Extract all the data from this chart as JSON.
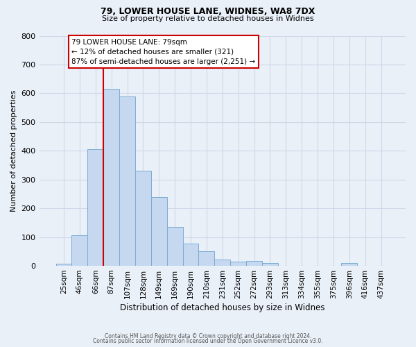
{
  "title1": "79, LOWER HOUSE LANE, WIDNES, WA8 7DX",
  "title2": "Size of property relative to detached houses in Widnes",
  "xlabel": "Distribution of detached houses by size in Widnes",
  "ylabel": "Number of detached properties",
  "footnote1": "Contains HM Land Registry data © Crown copyright and database right 2024.",
  "footnote2": "Contains public sector information licensed under the Open Government Licence v3.0.",
  "bar_labels": [
    "25sqm",
    "46sqm",
    "66sqm",
    "87sqm",
    "107sqm",
    "128sqm",
    "149sqm",
    "169sqm",
    "190sqm",
    "210sqm",
    "231sqm",
    "252sqm",
    "272sqm",
    "293sqm",
    "313sqm",
    "334sqm",
    "355sqm",
    "375sqm",
    "396sqm",
    "416sqm",
    "437sqm"
  ],
  "bar_values": [
    8,
    107,
    405,
    615,
    590,
    330,
    238,
    135,
    78,
    50,
    22,
    15,
    16,
    10,
    0,
    0,
    0,
    0,
    10,
    0,
    0
  ],
  "bar_color": "#c5d8f0",
  "bar_edge_color": "#7aadd4",
  "annotation_text": "79 LOWER HOUSE LANE: 79sqm\n← 12% of detached houses are smaller (321)\n87% of semi-detached houses are larger (2,251) →",
  "annotation_box_color": "#ffffff",
  "annotation_box_edge_color": "#cc0000",
  "vline_color": "#cc0000",
  "vline_x_index": 2.5,
  "background_color": "#eaf0f8",
  "grid_color": "#d0d8e8",
  "ylim": [
    0,
    800
  ],
  "yticks": [
    0,
    100,
    200,
    300,
    400,
    500,
    600,
    700,
    800
  ]
}
